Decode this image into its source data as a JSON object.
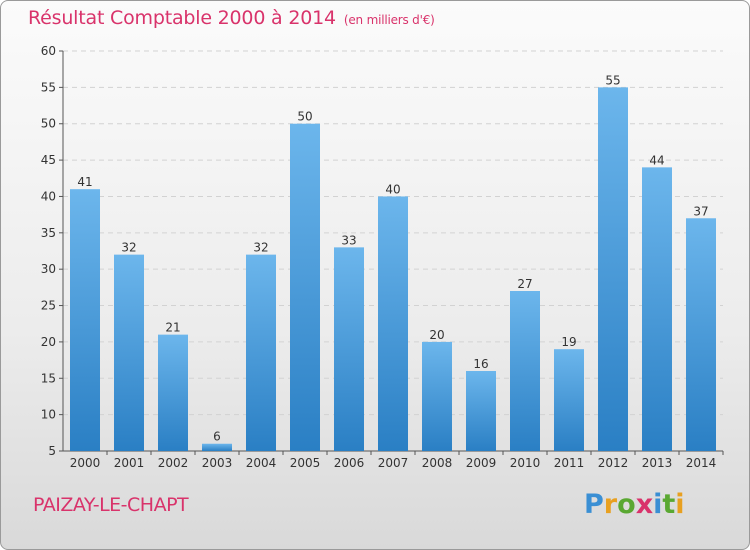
{
  "title": "Résultat Comptable 2000 à 2014",
  "subtitle": "(en milliers d'€)",
  "place": "PAIZAY-LE-CHAPT",
  "logo": {
    "letters": [
      "P",
      "r",
      "o",
      "x",
      "i",
      "t",
      "i"
    ],
    "colors": [
      "#3a8fd4",
      "#e8a020",
      "#5aa832",
      "#d9336b",
      "#3a8fd4",
      "#5aa832",
      "#e8a020"
    ]
  },
  "colors": {
    "bar_light": "#6cb6ec",
    "bar_dark": "#2a7fc4",
    "title": "#d9336b"
  },
  "chart_data": {
    "type": "bar",
    "categories": [
      "2000",
      "2001",
      "2002",
      "2003",
      "2004",
      "2005",
      "2006",
      "2007",
      "2008",
      "2009",
      "2010",
      "2011",
      "2012",
      "2013",
      "2014"
    ],
    "values": [
      41,
      32,
      21,
      6,
      32,
      50,
      33,
      40,
      20,
      16,
      27,
      19,
      55,
      44,
      37
    ],
    "ylim": [
      5,
      60
    ],
    "yticks": [
      5,
      10,
      15,
      20,
      25,
      30,
      35,
      40,
      45,
      50,
      55,
      60
    ],
    "grid": true,
    "title": "Résultat Comptable 2000 à 2014",
    "xlabel": "",
    "ylabel": ""
  }
}
